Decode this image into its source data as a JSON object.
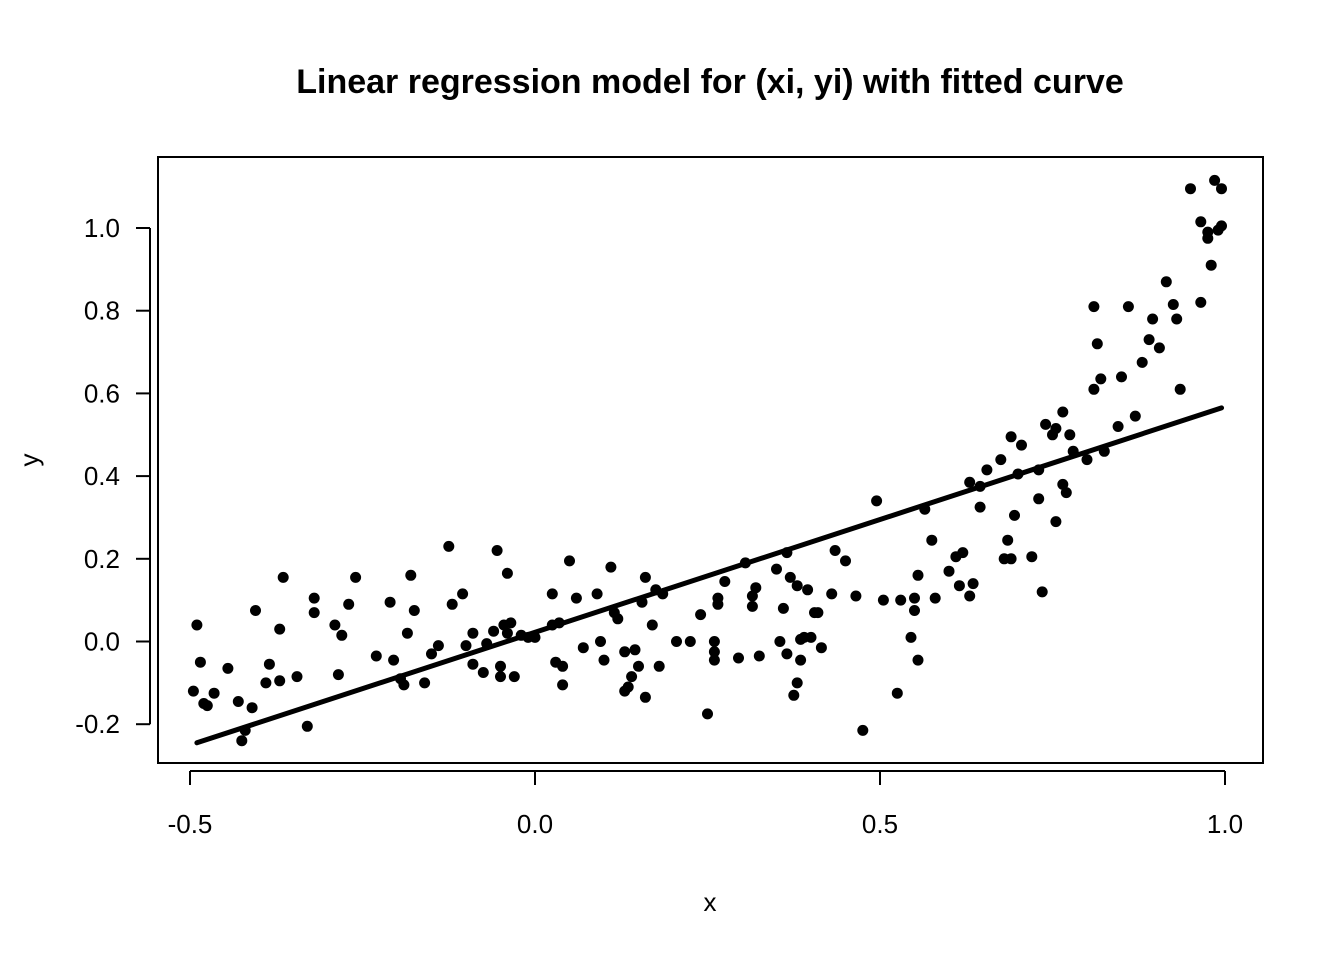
{
  "chart_data": {
    "type": "scatter",
    "title": "Linear regression model for (xi, yi) with fitted curve",
    "xlabel": "x",
    "ylabel": "y",
    "xlim": [
      -0.5,
      1.0
    ],
    "ylim": [
      -0.2,
      1.1
    ],
    "x_ticks": [
      "-0.5",
      "0.0",
      "0.5",
      "1.0"
    ],
    "y_ticks": [
      "-0.2",
      "0.0",
      "0.2",
      "0.4",
      "0.6",
      "0.8",
      "1.0"
    ],
    "grid": false,
    "legend": "none",
    "colors": {
      "points": "#000000",
      "fit_line": "#000000",
      "frame": "#000000"
    },
    "fit_line": {
      "x": [
        -0.49,
        0.995
      ],
      "y": [
        -0.245,
        0.565
      ]
    },
    "series": [
      {
        "points": [
          [
            -0.495,
            -0.12
          ],
          [
            -0.49,
            0.04
          ],
          [
            -0.485,
            -0.05
          ],
          [
            -0.48,
            -0.15
          ],
          [
            -0.475,
            -0.155
          ],
          [
            -0.465,
            -0.125
          ],
          [
            -0.445,
            -0.065
          ],
          [
            -0.43,
            -0.145
          ],
          [
            -0.425,
            -0.24
          ],
          [
            -0.42,
            -0.215
          ],
          [
            -0.41,
            -0.16
          ],
          [
            -0.405,
            0.075
          ],
          [
            -0.39,
            -0.1
          ],
          [
            -0.385,
            -0.055
          ],
          [
            -0.37,
            0.03
          ],
          [
            -0.37,
            -0.095
          ],
          [
            -0.365,
            0.155
          ],
          [
            -0.345,
            -0.085
          ],
          [
            -0.33,
            -0.205
          ],
          [
            -0.32,
            0.07
          ],
          [
            -0.32,
            0.105
          ],
          [
            -0.29,
            0.04
          ],
          [
            -0.285,
            -0.08
          ],
          [
            -0.28,
            0.015
          ],
          [
            -0.27,
            0.09
          ],
          [
            -0.26,
            0.155
          ],
          [
            -0.23,
            -0.035
          ],
          [
            -0.21,
            0.095
          ],
          [
            -0.205,
            -0.045
          ],
          [
            -0.195,
            -0.09
          ],
          [
            -0.19,
            -0.105
          ],
          [
            -0.185,
            0.02
          ],
          [
            -0.18,
            0.16
          ],
          [
            -0.175,
            0.075
          ],
          [
            -0.16,
            -0.1
          ],
          [
            -0.15,
            -0.03
          ],
          [
            -0.14,
            -0.01
          ],
          [
            -0.125,
            0.23
          ],
          [
            -0.12,
            0.09
          ],
          [
            -0.105,
            0.115
          ],
          [
            -0.1,
            -0.01
          ],
          [
            -0.09,
            0.02
          ],
          [
            -0.09,
            -0.055
          ],
          [
            -0.075,
            -0.075
          ],
          [
            -0.07,
            -0.005
          ],
          [
            -0.06,
            0.025
          ],
          [
            -0.055,
            0.22
          ],
          [
            -0.05,
            -0.085
          ],
          [
            -0.05,
            -0.06
          ],
          [
            -0.045,
            0.04
          ],
          [
            -0.04,
            0.165
          ],
          [
            -0.04,
            0.02
          ],
          [
            -0.035,
            0.045
          ],
          [
            -0.03,
            -0.085
          ],
          [
            -0.02,
            0.015
          ],
          [
            -0.01,
            0.01
          ],
          [
            0.0,
            0.01
          ],
          [
            0.025,
            0.115
          ],
          [
            0.025,
            0.04
          ],
          [
            0.03,
            -0.05
          ],
          [
            0.035,
            0.045
          ],
          [
            0.04,
            -0.105
          ],
          [
            0.04,
            -0.06
          ],
          [
            0.05,
            0.195
          ],
          [
            0.06,
            0.105
          ],
          [
            0.07,
            -0.015
          ],
          [
            0.09,
            0.115
          ],
          [
            0.095,
            0.0
          ],
          [
            0.1,
            -0.045
          ],
          [
            0.11,
            0.18
          ],
          [
            0.115,
            0.07
          ],
          [
            0.12,
            0.055
          ],
          [
            0.13,
            -0.025
          ],
          [
            0.13,
            -0.12
          ],
          [
            0.135,
            -0.11
          ],
          [
            0.14,
            -0.085
          ],
          [
            0.145,
            -0.02
          ],
          [
            0.15,
            -0.06
          ],
          [
            0.155,
            0.095
          ],
          [
            0.16,
            0.155
          ],
          [
            0.16,
            -0.135
          ],
          [
            0.17,
            0.04
          ],
          [
            0.175,
            0.125
          ],
          [
            0.18,
            -0.06
          ],
          [
            0.185,
            0.115
          ],
          [
            0.205,
            0.0
          ],
          [
            0.225,
            0.0
          ],
          [
            0.24,
            0.065
          ],
          [
            0.25,
            -0.175
          ],
          [
            0.26,
            0.0
          ],
          [
            0.26,
            -0.025
          ],
          [
            0.26,
            -0.045
          ],
          [
            0.265,
            0.09
          ],
          [
            0.265,
            0.105
          ],
          [
            0.275,
            0.145
          ],
          [
            0.295,
            -0.04
          ],
          [
            0.305,
            0.19
          ],
          [
            0.315,
            0.11
          ],
          [
            0.315,
            0.085
          ],
          [
            0.32,
            0.13
          ],
          [
            0.325,
            -0.035
          ],
          [
            0.35,
            0.175
          ],
          [
            0.355,
            0.0
          ],
          [
            0.36,
            0.08
          ],
          [
            0.365,
            0.215
          ],
          [
            0.365,
            -0.03
          ],
          [
            0.37,
            0.155
          ],
          [
            0.375,
            -0.13
          ],
          [
            0.38,
            -0.1
          ],
          [
            0.38,
            0.135
          ],
          [
            0.385,
            -0.045
          ],
          [
            0.385,
            0.005
          ],
          [
            0.39,
            0.01
          ],
          [
            0.395,
            0.125
          ],
          [
            0.4,
            0.01
          ],
          [
            0.405,
            0.07
          ],
          [
            0.41,
            0.07
          ],
          [
            0.415,
            -0.015
          ],
          [
            0.43,
            0.115
          ],
          [
            0.435,
            0.22
          ],
          [
            0.45,
            0.195
          ],
          [
            0.465,
            0.11
          ],
          [
            0.475,
            -0.215
          ],
          [
            0.495,
            0.34
          ],
          [
            0.505,
            0.1
          ],
          [
            0.525,
            -0.125
          ],
          [
            0.53,
            0.1
          ],
          [
            0.545,
            0.01
          ],
          [
            0.55,
            0.105
          ],
          [
            0.55,
            0.075
          ],
          [
            0.555,
            -0.045
          ],
          [
            0.555,
            0.16
          ],
          [
            0.565,
            0.32
          ],
          [
            0.575,
            0.245
          ],
          [
            0.58,
            0.105
          ],
          [
            0.6,
            0.17
          ],
          [
            0.61,
            0.205
          ],
          [
            0.615,
            0.135
          ],
          [
            0.62,
            0.215
          ],
          [
            0.63,
            0.11
          ],
          [
            0.63,
            0.385
          ],
          [
            0.635,
            0.14
          ],
          [
            0.645,
            0.375
          ],
          [
            0.645,
            0.325
          ],
          [
            0.655,
            0.415
          ],
          [
            0.675,
            0.44
          ],
          [
            0.68,
            0.2
          ],
          [
            0.685,
            0.245
          ],
          [
            0.69,
            0.495
          ],
          [
            0.69,
            0.2
          ],
          [
            0.695,
            0.305
          ],
          [
            0.7,
            0.405
          ],
          [
            0.705,
            0.475
          ],
          [
            0.72,
            0.205
          ],
          [
            0.73,
            0.345
          ],
          [
            0.73,
            0.415
          ],
          [
            0.735,
            0.12
          ],
          [
            0.74,
            0.525
          ],
          [
            0.75,
            0.5
          ],
          [
            0.755,
            0.515
          ],
          [
            0.755,
            0.29
          ],
          [
            0.765,
            0.555
          ],
          [
            0.765,
            0.38
          ],
          [
            0.77,
            0.36
          ],
          [
            0.775,
            0.5
          ],
          [
            0.78,
            0.46
          ],
          [
            0.8,
            0.44
          ],
          [
            0.81,
            0.81
          ],
          [
            0.81,
            0.61
          ],
          [
            0.815,
            0.72
          ],
          [
            0.82,
            0.635
          ],
          [
            0.825,
            0.46
          ],
          [
            0.845,
            0.52
          ],
          [
            0.85,
            0.64
          ],
          [
            0.86,
            0.81
          ],
          [
            0.87,
            0.545
          ],
          [
            0.88,
            0.675
          ],
          [
            0.89,
            0.73
          ],
          [
            0.895,
            0.78
          ],
          [
            0.905,
            0.71
          ],
          [
            0.915,
            0.87
          ],
          [
            0.925,
            0.815
          ],
          [
            0.93,
            0.78
          ],
          [
            0.935,
            0.61
          ],
          [
            0.95,
            1.095
          ],
          [
            0.965,
            1.015
          ],
          [
            0.965,
            0.82
          ],
          [
            0.975,
            0.99
          ],
          [
            0.975,
            0.975
          ],
          [
            0.98,
            0.91
          ],
          [
            0.985,
            1.115
          ],
          [
            0.99,
            0.995
          ],
          [
            0.995,
            1.095
          ],
          [
            0.995,
            1.005
          ]
        ]
      }
    ]
  }
}
